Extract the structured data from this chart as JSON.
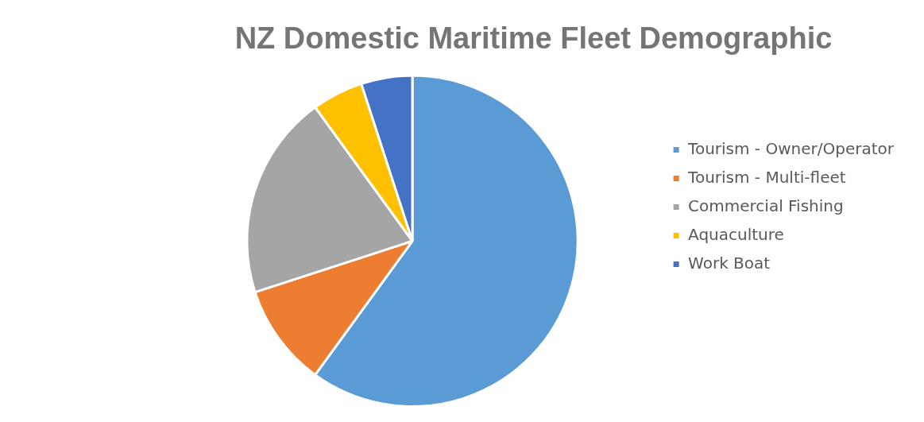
{
  "chart_data": {
    "type": "pie",
    "title": "NZ Domestic Maritime Fleet Demographic",
    "categories": [
      "Tourism - Owner/Operator",
      "Tourism - Multi-fleet",
      "Commercial Fishing",
      "Aquaculture",
      "Work Boat"
    ],
    "values": [
      60,
      10,
      20,
      5,
      5
    ],
    "colors": [
      "#5b9bd5",
      "#ed7d31",
      "#a5a5a5",
      "#ffc000",
      "#4472c4"
    ],
    "legend": "right"
  }
}
